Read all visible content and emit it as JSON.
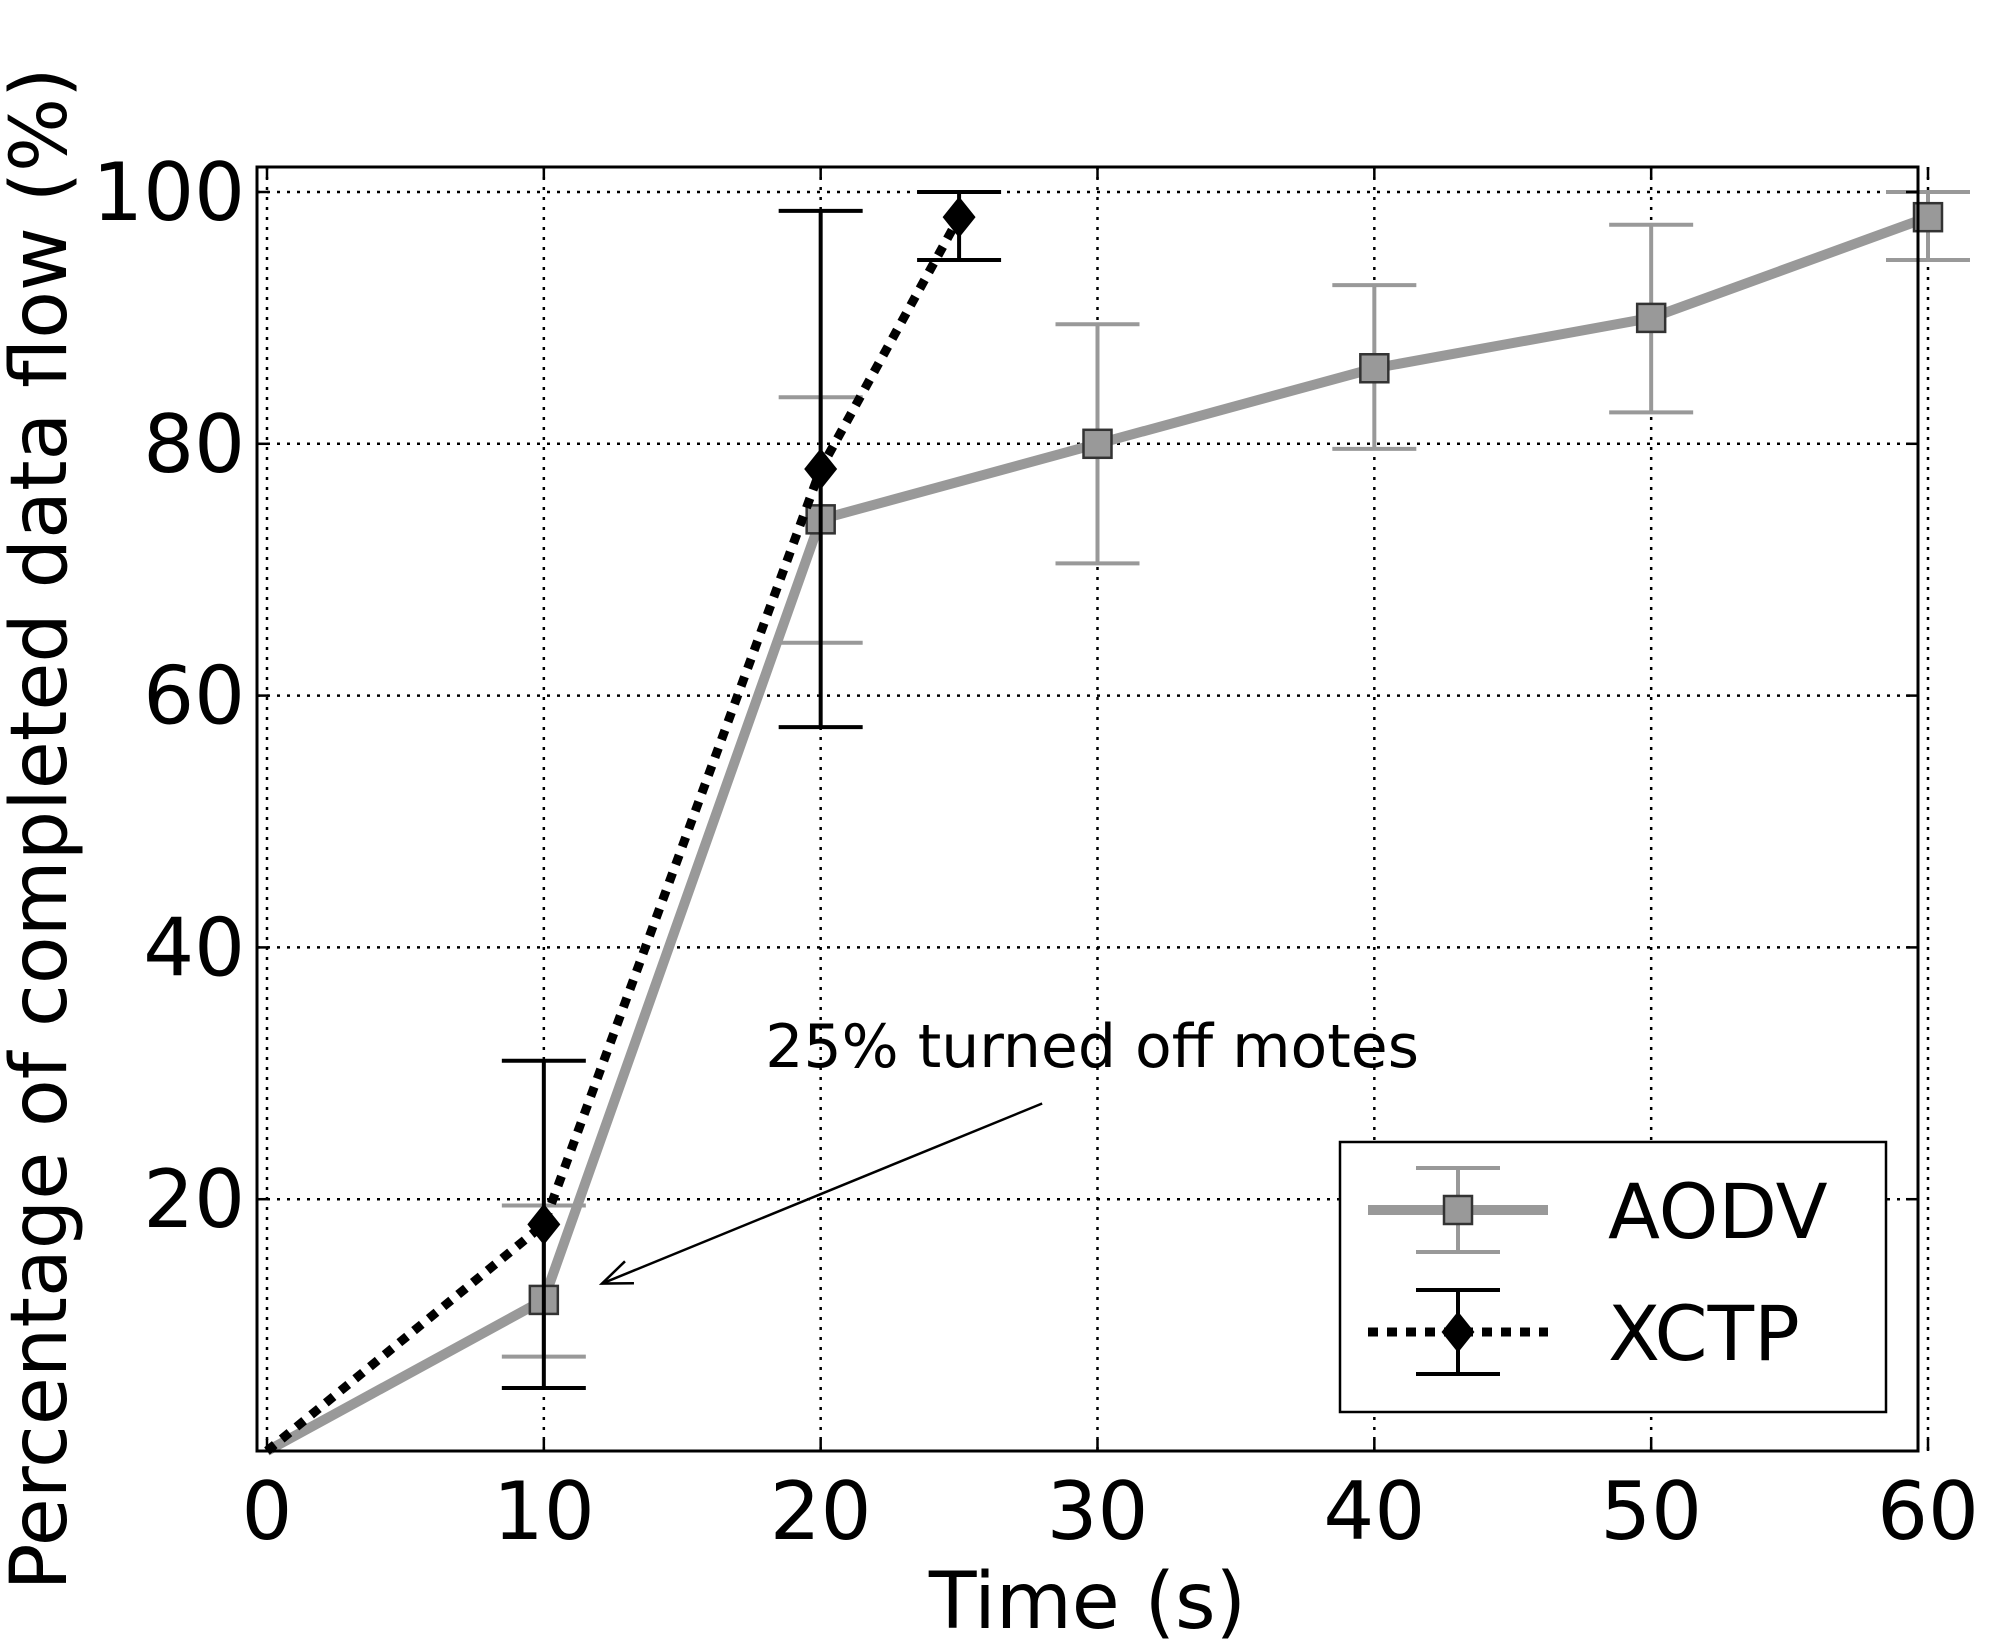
{
  "chart_data": {
    "type": "line",
    "title": "",
    "xlabel": "Time (s)",
    "ylabel": "Percentage of completed data flow (%)",
    "xlim": [
      0,
      60
    ],
    "ylim": [
      0,
      100
    ],
    "xticks": [
      0,
      10,
      20,
      30,
      40,
      50,
      60
    ],
    "xtick_labels": [
      "0",
      "10",
      "20",
      "30",
      "40",
      "50",
      "60"
    ],
    "yticks": [
      20,
      40,
      60,
      80,
      100
    ],
    "ytick_labels": [
      "20",
      "40",
      "60",
      "80",
      "100"
    ],
    "grid": true,
    "legend_position": "lower-right",
    "series": [
      {
        "name": "AODV",
        "color": "#999999",
        "line_style": "solid",
        "marker": "square",
        "points": [
          {
            "x": 0,
            "y": 0,
            "err_low": 0,
            "err_high": 0
          },
          {
            "x": 10,
            "y": 12,
            "err_low": 7.5,
            "err_high": 19.5
          },
          {
            "x": 20,
            "y": 74,
            "err_low": 64.2,
            "err_high": 83.7
          },
          {
            "x": 30,
            "y": 80,
            "err_low": 70.5,
            "err_high": 89.5
          },
          {
            "x": 40,
            "y": 86,
            "err_low": 79.6,
            "err_high": 92.6
          },
          {
            "x": 50,
            "y": 90,
            "err_low": 82.5,
            "err_high": 97.4
          },
          {
            "x": 60,
            "y": 98,
            "err_low": 94.6,
            "err_high": 100
          }
        ]
      },
      {
        "name": "XCTP",
        "color": "#000000",
        "line_style": "dotted",
        "marker": "diamond",
        "points": [
          {
            "x": 0,
            "y": 0,
            "err_low": 0,
            "err_high": 0
          },
          {
            "x": 10,
            "y": 18,
            "err_low": 5.0,
            "err_high": 31.0
          },
          {
            "x": 20,
            "y": 78,
            "err_low": 57.5,
            "err_high": 98.5
          },
          {
            "x": 25,
            "y": 98,
            "err_low": 94.6,
            "err_high": 100
          }
        ]
      }
    ],
    "annotations": [
      {
        "text": "25% turned off motes",
        "text_x": 18,
        "text_y": 30.5,
        "arrow_from_x": 28,
        "arrow_from_y": 27.6,
        "arrow_to_x": 12.1,
        "arrow_to_y": 13.3
      }
    ]
  }
}
